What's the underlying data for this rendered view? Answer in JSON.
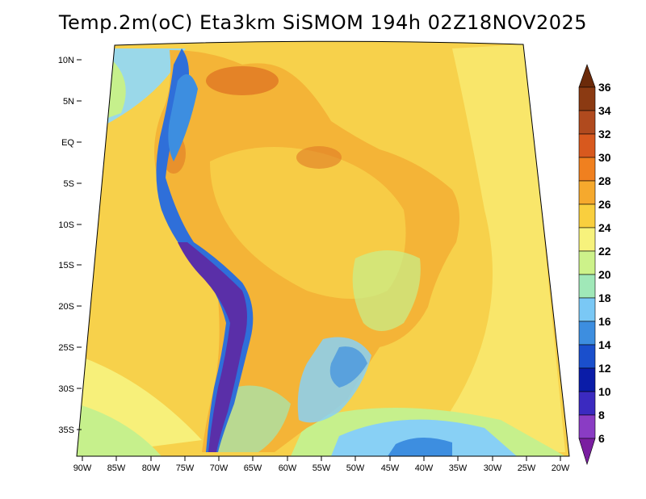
{
  "title": "Temp.2m(oC) Eta3km SiSMOM 194h 02Z18NOV2025",
  "lat_labels": [
    "10N",
    "5N",
    "EQ",
    "5S",
    "10S",
    "15S",
    "20S",
    "25S",
    "30S",
    "35S"
  ],
  "lon_labels": [
    "90W",
    "85W",
    "80W",
    "75W",
    "70W",
    "65W",
    "60W",
    "55W",
    "50W",
    "45W",
    "40W",
    "35W",
    "30W",
    "25W",
    "20W"
  ],
  "colorbar": {
    "labels": [
      "36",
      "34",
      "32",
      "30",
      "28",
      "26",
      "24",
      "22",
      "20",
      "18",
      "16",
      "14",
      "12",
      "10",
      "8",
      "6"
    ],
    "colors": [
      "#6b2a0a",
      "#8b3a12",
      "#b04a1e",
      "#d8591e",
      "#f0801f",
      "#f6a92d",
      "#f9cf3e",
      "#f7f27c",
      "#cdf28a",
      "#a0e8b8",
      "#7ac8f5",
      "#3d8ee0",
      "#1a4fcc",
      "#0a1ca8",
      "#3b2ac0",
      "#8a3cc4",
      "#7a1ea0"
    ]
  },
  "legend_colors": {
    "land_hot": "#f4b437",
    "land_warm": "#f8d24a",
    "ocean": "#f7d14b",
    "ocean_cool": "#f7f07a",
    "ocean_pale": "#c6f08c",
    "cold_ocean": "#88d0f5",
    "andes_cold": "#5a2fa8",
    "andes_cool": "#2f6fd9",
    "hot_spot": "#e07a25",
    "background": "#ffffff"
  }
}
